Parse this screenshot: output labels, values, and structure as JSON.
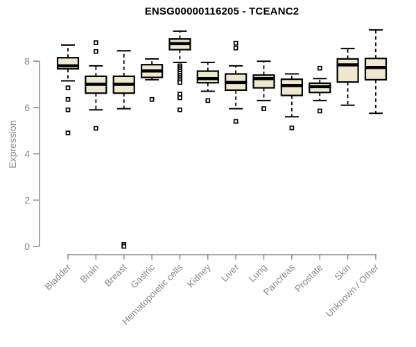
{
  "page": {
    "background": "#ffffff"
  },
  "chart_data": {
    "type": "boxplot",
    "title": "ENSG00000116205 - TCEANC2",
    "ylabel": "Expression",
    "xlabel": "",
    "yticks": [
      0,
      2,
      4,
      6,
      8
    ],
    "ylim": [
      0,
      9.6
    ],
    "grid": false,
    "legend": null,
    "colors": {
      "box_fill": "#ede8cf",
      "box_stroke": "#000000",
      "median": "#000000",
      "whisker": "#000000",
      "outlier_stroke": "#000000",
      "outlier_fill": "#ffffff",
      "axis": "#8a8a8a",
      "tick_label": "#8a8a8a",
      "title": "#000000"
    },
    "categories": [
      "Bladder",
      "Brain",
      "Breast",
      "Gastric",
      "Hematopoietic cells",
      "Kidney",
      "Liver",
      "Lung",
      "Pancreas",
      "Prostate",
      "Skin",
      "Unknown / Other"
    ],
    "boxes": [
      {
        "category": "Bladder",
        "whisker_low": 7.15,
        "q1": 7.67,
        "median": 7.8,
        "q3": 8.15,
        "whisker_high": 8.7,
        "outliers": [
          6.85,
          6.35,
          5.9,
          4.9
        ]
      },
      {
        "category": "Brain",
        "whisker_low": 5.9,
        "q1": 6.62,
        "median": 7.0,
        "q3": 7.35,
        "whisker_high": 7.8,
        "outliers": [
          8.8,
          8.42,
          5.1
        ]
      },
      {
        "category": "Breast",
        "whisker_low": 5.95,
        "q1": 6.62,
        "median": 7.0,
        "q3": 7.35,
        "whisker_high": 8.45,
        "outliers": [
          0.08,
          0.0
        ]
      },
      {
        "category": "Gastric",
        "whisker_low": 7.2,
        "q1": 7.3,
        "median": 7.58,
        "q3": 7.85,
        "whisker_high": 8.1,
        "outliers": [
          6.35
        ]
      },
      {
        "category": "Hematopoietic cells",
        "whisker_low": 7.95,
        "q1": 8.5,
        "median": 8.76,
        "q3": 8.96,
        "whisker_high": 9.3,
        "outliers": [
          7.8,
          7.72,
          7.64,
          7.56,
          7.48,
          7.4,
          7.32,
          7.24,
          7.16,
          7.08,
          6.58,
          6.42,
          5.9
        ]
      },
      {
        "category": "Kidney",
        "whisker_low": 6.7,
        "q1": 7.07,
        "median": 7.25,
        "q3": 7.57,
        "whisker_high": 7.95,
        "outliers": [
          6.3
        ]
      },
      {
        "category": "Liver",
        "whisker_low": 5.95,
        "q1": 6.75,
        "median": 7.08,
        "q3": 7.45,
        "whisker_high": 7.8,
        "outliers": [
          8.78,
          8.57,
          5.4
        ]
      },
      {
        "category": "Lung",
        "whisker_low": 6.3,
        "q1": 6.85,
        "median": 7.25,
        "q3": 7.4,
        "whisker_high": 8.0,
        "outliers": [
          5.95
        ]
      },
      {
        "category": "Pancreas",
        "whisker_low": 5.6,
        "q1": 6.52,
        "median": 6.95,
        "q3": 7.22,
        "whisker_high": 7.45,
        "outliers": [
          5.12
        ]
      },
      {
        "category": "Prostate",
        "whisker_low": 6.3,
        "q1": 6.65,
        "median": 6.9,
        "q3": 7.05,
        "whisker_high": 7.25,
        "outliers": [
          7.7,
          5.85
        ]
      },
      {
        "category": "Skin",
        "whisker_low": 6.1,
        "q1": 7.1,
        "median": 7.84,
        "q3": 8.1,
        "whisker_high": 8.55,
        "outliers": []
      },
      {
        "category": "Unknown / Other",
        "whisker_low": 5.75,
        "q1": 7.2,
        "median": 7.73,
        "q3": 8.12,
        "whisker_high": 9.35,
        "outliers": []
      }
    ]
  }
}
